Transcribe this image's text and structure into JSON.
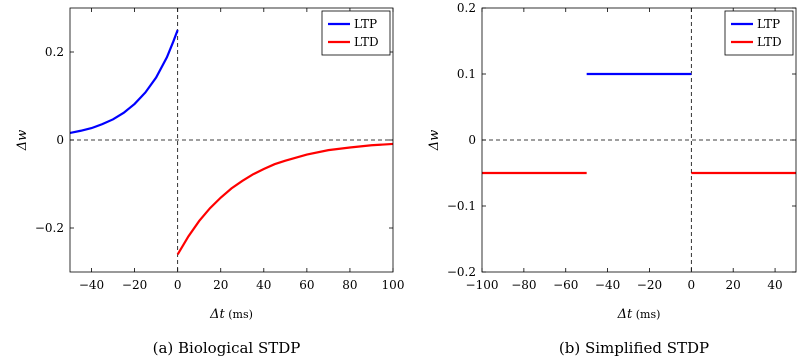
{
  "chart_data": [
    {
      "type": "line",
      "caption": "(a) Biological STDP",
      "xlabel": "Δt",
      "xlabel_unit": "(ms)",
      "ylabel": "Δw",
      "xlim": [
        -50,
        100
      ],
      "ylim": [
        -0.3,
        0.3
      ],
      "xticks": [
        -40,
        -20,
        0,
        20,
        40,
        60,
        80,
        100
      ],
      "xtick_labels": [
        "−40",
        "−20",
        "0",
        "20",
        "40",
        "60",
        "80",
        "100"
      ],
      "yticks": [
        -0.2,
        0,
        0.2
      ],
      "ytick_labels": [
        "−0.2",
        "0",
        "0.2"
      ],
      "legend_position": "top-right",
      "series": [
        {
          "name": "LTP",
          "color": "#0000ff",
          "x": [
            -50,
            -45,
            -40,
            -35,
            -30,
            -25,
            -20,
            -15,
            -10,
            -5,
            -2,
            0
          ],
          "y": [
            0.016,
            0.021,
            0.027,
            0.036,
            0.047,
            0.062,
            0.082,
            0.108,
            0.142,
            0.188,
            0.224,
            0.25
          ]
        },
        {
          "name": "LTD",
          "color": "#ff0000",
          "x": [
            0,
            5,
            10,
            15,
            20,
            25,
            30,
            35,
            40,
            45,
            50,
            60,
            70,
            80,
            90,
            100
          ],
          "y": [
            -0.26,
            -0.219,
            -0.184,
            -0.155,
            -0.131,
            -0.11,
            -0.093,
            -0.078,
            -0.066,
            -0.055,
            -0.047,
            -0.033,
            -0.023,
            -0.017,
            -0.012,
            -0.009
          ]
        }
      ],
      "reference_lines": [
        {
          "axis": "y",
          "value": 0,
          "style": "dashed"
        },
        {
          "axis": "x",
          "value": 0,
          "style": "dashed"
        }
      ]
    },
    {
      "type": "line",
      "caption": "(b) Simplified STDP",
      "xlabel": "Δt",
      "xlabel_unit": "(ms)",
      "ylabel": "Δw",
      "xlim": [
        -100,
        50
      ],
      "ylim": [
        -0.2,
        0.2
      ],
      "xticks": [
        -100,
        -80,
        -60,
        -40,
        -20,
        0,
        20,
        40
      ],
      "xtick_labels": [
        "−100",
        "−80",
        "−60",
        "−40",
        "−20",
        "0",
        "20",
        "40"
      ],
      "yticks": [
        -0.2,
        -0.1,
        0,
        0.1,
        0.2
      ],
      "ytick_labels": [
        "−0.2",
        "−0.1",
        "0",
        "0.1",
        "0.2"
      ],
      "legend_position": "top-right",
      "series": [
        {
          "name": "LTP",
          "color": "#0000ff",
          "segments": [
            {
              "x": [
                -50,
                0
              ],
              "y": [
                0.1,
                0.1
              ]
            }
          ]
        },
        {
          "name": "LTD",
          "color": "#ff0000",
          "segments": [
            {
              "x": [
                -100,
                -50
              ],
              "y": [
                -0.05,
                -0.05
              ]
            },
            {
              "x": [
                0,
                50
              ],
              "y": [
                -0.05,
                -0.05
              ]
            }
          ]
        }
      ],
      "reference_lines": [
        {
          "axis": "y",
          "value": 0,
          "style": "dashed"
        },
        {
          "axis": "x",
          "value": 0,
          "style": "dashed"
        }
      ]
    }
  ]
}
